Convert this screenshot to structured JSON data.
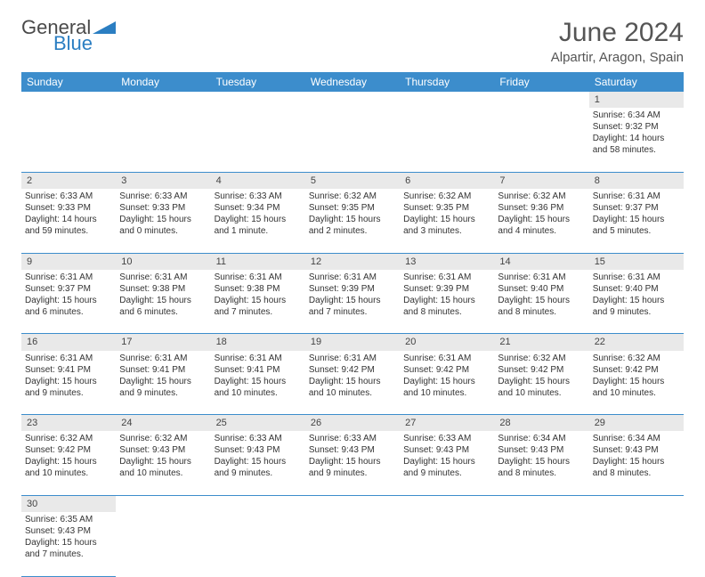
{
  "logo": {
    "part1": "General",
    "part2": "Blue",
    "triangle_color": "#2b7ec2"
  },
  "title": {
    "month": "June 2024",
    "location": "Alpartir, Aragon, Spain"
  },
  "colors": {
    "header_bg": "#3c8dcc",
    "header_text": "#ffffff",
    "daynum_bg": "#e9e9e9",
    "rule": "#3c8dcc"
  },
  "day_headers": [
    "Sunday",
    "Monday",
    "Tuesday",
    "Wednesday",
    "Thursday",
    "Friday",
    "Saturday"
  ],
  "weeks": [
    [
      null,
      null,
      null,
      null,
      null,
      null,
      {
        "n": "1",
        "sunrise": "Sunrise: 6:34 AM",
        "sunset": "Sunset: 9:32 PM",
        "daylight1": "Daylight: 14 hours",
        "daylight2": "and 58 minutes."
      }
    ],
    [
      {
        "n": "2",
        "sunrise": "Sunrise: 6:33 AM",
        "sunset": "Sunset: 9:33 PM",
        "daylight1": "Daylight: 14 hours",
        "daylight2": "and 59 minutes."
      },
      {
        "n": "3",
        "sunrise": "Sunrise: 6:33 AM",
        "sunset": "Sunset: 9:33 PM",
        "daylight1": "Daylight: 15 hours",
        "daylight2": "and 0 minutes."
      },
      {
        "n": "4",
        "sunrise": "Sunrise: 6:33 AM",
        "sunset": "Sunset: 9:34 PM",
        "daylight1": "Daylight: 15 hours",
        "daylight2": "and 1 minute."
      },
      {
        "n": "5",
        "sunrise": "Sunrise: 6:32 AM",
        "sunset": "Sunset: 9:35 PM",
        "daylight1": "Daylight: 15 hours",
        "daylight2": "and 2 minutes."
      },
      {
        "n": "6",
        "sunrise": "Sunrise: 6:32 AM",
        "sunset": "Sunset: 9:35 PM",
        "daylight1": "Daylight: 15 hours",
        "daylight2": "and 3 minutes."
      },
      {
        "n": "7",
        "sunrise": "Sunrise: 6:32 AM",
        "sunset": "Sunset: 9:36 PM",
        "daylight1": "Daylight: 15 hours",
        "daylight2": "and 4 minutes."
      },
      {
        "n": "8",
        "sunrise": "Sunrise: 6:31 AM",
        "sunset": "Sunset: 9:37 PM",
        "daylight1": "Daylight: 15 hours",
        "daylight2": "and 5 minutes."
      }
    ],
    [
      {
        "n": "9",
        "sunrise": "Sunrise: 6:31 AM",
        "sunset": "Sunset: 9:37 PM",
        "daylight1": "Daylight: 15 hours",
        "daylight2": "and 6 minutes."
      },
      {
        "n": "10",
        "sunrise": "Sunrise: 6:31 AM",
        "sunset": "Sunset: 9:38 PM",
        "daylight1": "Daylight: 15 hours",
        "daylight2": "and 6 minutes."
      },
      {
        "n": "11",
        "sunrise": "Sunrise: 6:31 AM",
        "sunset": "Sunset: 9:38 PM",
        "daylight1": "Daylight: 15 hours",
        "daylight2": "and 7 minutes."
      },
      {
        "n": "12",
        "sunrise": "Sunrise: 6:31 AM",
        "sunset": "Sunset: 9:39 PM",
        "daylight1": "Daylight: 15 hours",
        "daylight2": "and 7 minutes."
      },
      {
        "n": "13",
        "sunrise": "Sunrise: 6:31 AM",
        "sunset": "Sunset: 9:39 PM",
        "daylight1": "Daylight: 15 hours",
        "daylight2": "and 8 minutes."
      },
      {
        "n": "14",
        "sunrise": "Sunrise: 6:31 AM",
        "sunset": "Sunset: 9:40 PM",
        "daylight1": "Daylight: 15 hours",
        "daylight2": "and 8 minutes."
      },
      {
        "n": "15",
        "sunrise": "Sunrise: 6:31 AM",
        "sunset": "Sunset: 9:40 PM",
        "daylight1": "Daylight: 15 hours",
        "daylight2": "and 9 minutes."
      }
    ],
    [
      {
        "n": "16",
        "sunrise": "Sunrise: 6:31 AM",
        "sunset": "Sunset: 9:41 PM",
        "daylight1": "Daylight: 15 hours",
        "daylight2": "and 9 minutes."
      },
      {
        "n": "17",
        "sunrise": "Sunrise: 6:31 AM",
        "sunset": "Sunset: 9:41 PM",
        "daylight1": "Daylight: 15 hours",
        "daylight2": "and 9 minutes."
      },
      {
        "n": "18",
        "sunrise": "Sunrise: 6:31 AM",
        "sunset": "Sunset: 9:41 PM",
        "daylight1": "Daylight: 15 hours",
        "daylight2": "and 10 minutes."
      },
      {
        "n": "19",
        "sunrise": "Sunrise: 6:31 AM",
        "sunset": "Sunset: 9:42 PM",
        "daylight1": "Daylight: 15 hours",
        "daylight2": "and 10 minutes."
      },
      {
        "n": "20",
        "sunrise": "Sunrise: 6:31 AM",
        "sunset": "Sunset: 9:42 PM",
        "daylight1": "Daylight: 15 hours",
        "daylight2": "and 10 minutes."
      },
      {
        "n": "21",
        "sunrise": "Sunrise: 6:32 AM",
        "sunset": "Sunset: 9:42 PM",
        "daylight1": "Daylight: 15 hours",
        "daylight2": "and 10 minutes."
      },
      {
        "n": "22",
        "sunrise": "Sunrise: 6:32 AM",
        "sunset": "Sunset: 9:42 PM",
        "daylight1": "Daylight: 15 hours",
        "daylight2": "and 10 minutes."
      }
    ],
    [
      {
        "n": "23",
        "sunrise": "Sunrise: 6:32 AM",
        "sunset": "Sunset: 9:42 PM",
        "daylight1": "Daylight: 15 hours",
        "daylight2": "and 10 minutes."
      },
      {
        "n": "24",
        "sunrise": "Sunrise: 6:32 AM",
        "sunset": "Sunset: 9:43 PM",
        "daylight1": "Daylight: 15 hours",
        "daylight2": "and 10 minutes."
      },
      {
        "n": "25",
        "sunrise": "Sunrise: 6:33 AM",
        "sunset": "Sunset: 9:43 PM",
        "daylight1": "Daylight: 15 hours",
        "daylight2": "and 9 minutes."
      },
      {
        "n": "26",
        "sunrise": "Sunrise: 6:33 AM",
        "sunset": "Sunset: 9:43 PM",
        "daylight1": "Daylight: 15 hours",
        "daylight2": "and 9 minutes."
      },
      {
        "n": "27",
        "sunrise": "Sunrise: 6:33 AM",
        "sunset": "Sunset: 9:43 PM",
        "daylight1": "Daylight: 15 hours",
        "daylight2": "and 9 minutes."
      },
      {
        "n": "28",
        "sunrise": "Sunrise: 6:34 AM",
        "sunset": "Sunset: 9:43 PM",
        "daylight1": "Daylight: 15 hours",
        "daylight2": "and 8 minutes."
      },
      {
        "n": "29",
        "sunrise": "Sunrise: 6:34 AM",
        "sunset": "Sunset: 9:43 PM",
        "daylight1": "Daylight: 15 hours",
        "daylight2": "and 8 minutes."
      }
    ],
    [
      {
        "n": "30",
        "sunrise": "Sunrise: 6:35 AM",
        "sunset": "Sunset: 9:43 PM",
        "daylight1": "Daylight: 15 hours",
        "daylight2": "and 7 minutes."
      },
      null,
      null,
      null,
      null,
      null,
      null
    ]
  ]
}
